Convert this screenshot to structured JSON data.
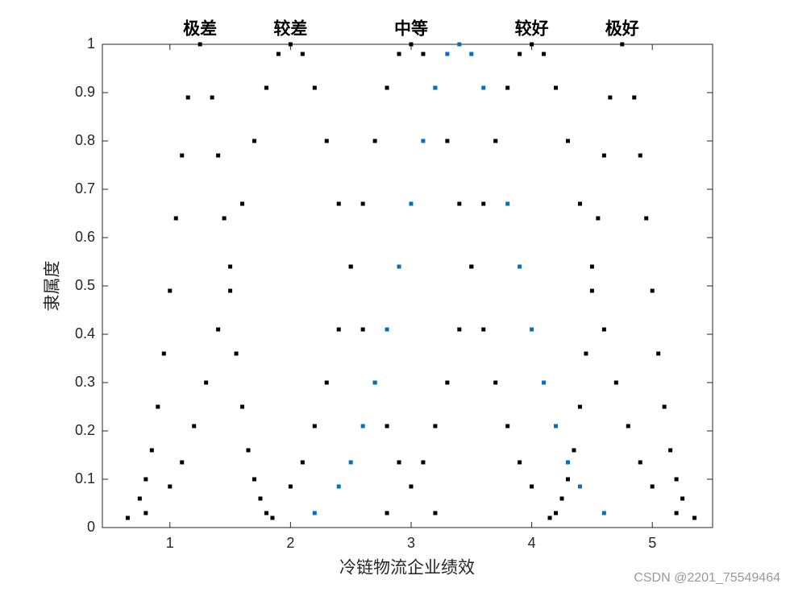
{
  "chart_data": {
    "type": "scatter",
    "x_label": "冷链物流企业绩效",
    "y_label": "隶属度",
    "watermark": "CSDN @2201_75549464",
    "xlim": [
      0.44,
      5.5
    ],
    "xticks": [
      1,
      2,
      3,
      4,
      5
    ],
    "ylim": [
      0,
      1
    ],
    "yticks": [
      0,
      0.1,
      0.2,
      0.3,
      0.4,
      0.5,
      0.6,
      0.7,
      0.8,
      0.9,
      1
    ],
    "series": [
      {
        "name": "极差",
        "color": "#000000",
        "x": [
          0.65,
          0.75,
          0.8,
          0.85,
          0.9,
          0.95,
          1.0,
          1.05,
          1.1,
          1.15,
          1.25,
          1.35,
          1.4,
          1.45,
          1.5,
          1.55,
          1.6,
          1.65,
          1.7,
          1.75,
          1.85
        ],
        "values": [
          0.02,
          0.06,
          0.1,
          0.16,
          0.25,
          0.36,
          0.49,
          0.64,
          0.77,
          0.89,
          1,
          0.89,
          0.77,
          0.64,
          0.49,
          0.36,
          0.25,
          0.16,
          0.1,
          0.06,
          0.02
        ]
      },
      {
        "name": "较差",
        "color": "#000000",
        "x": [
          0.8,
          1.0,
          1.1,
          1.2,
          1.3,
          1.4,
          1.5,
          1.6,
          1.7,
          1.8,
          1.9,
          2.0,
          2.1,
          2.2,
          2.3,
          2.4,
          2.5,
          2.6,
          2.7,
          2.8,
          2.9,
          3.0,
          3.2
        ],
        "values": [
          0.03,
          0.085,
          0.135,
          0.21,
          0.3,
          0.41,
          0.54,
          0.67,
          0.8,
          0.91,
          0.98,
          1,
          0.98,
          0.91,
          0.8,
          0.67,
          0.54,
          0.41,
          0.3,
          0.21,
          0.135,
          0.085,
          0.03
        ]
      },
      {
        "name": "中等",
        "color": "#000000",
        "x": [
          1.8,
          2.0,
          2.1,
          2.2,
          2.3,
          2.4,
          2.5,
          2.6,
          2.7,
          2.8,
          2.9,
          3.0,
          3.1,
          3.2,
          3.3,
          3.4,
          3.5,
          3.6,
          3.7,
          3.8,
          3.9,
          4.0,
          4.2
        ],
        "values": [
          0.03,
          0.085,
          0.135,
          0.21,
          0.3,
          0.41,
          0.54,
          0.67,
          0.8,
          0.91,
          0.98,
          1,
          0.98,
          0.91,
          0.8,
          0.67,
          0.54,
          0.41,
          0.3,
          0.21,
          0.135,
          0.085,
          0.03
        ]
      },
      {
        "color": "#0072bd",
        "x": [
          2.2,
          2.4,
          2.5,
          2.6,
          2.7,
          2.8,
          2.9,
          3.0,
          3.1,
          3.2,
          3.3,
          3.4,
          3.5,
          3.6,
          3.7,
          3.8,
          3.9,
          4.0,
          4.1,
          4.2,
          4.3,
          4.4,
          4.6
        ],
        "values": [
          0.03,
          0.085,
          0.135,
          0.21,
          0.3,
          0.41,
          0.54,
          0.67,
          0.8,
          0.91,
          0.98,
          1,
          0.98,
          0.91,
          0.8,
          0.67,
          0.54,
          0.41,
          0.3,
          0.21,
          0.135,
          0.085,
          0.03
        ]
      },
      {
        "name": "较好",
        "color": "#000000",
        "x": [
          2.8,
          3.0,
          3.1,
          3.2,
          3.3,
          3.4,
          3.5,
          3.6,
          3.7,
          3.8,
          3.9,
          4.0,
          4.1,
          4.2,
          4.3,
          4.4,
          4.5,
          4.6,
          4.7,
          4.8,
          4.9,
          5.0,
          5.2
        ],
        "values": [
          0.03,
          0.085,
          0.135,
          0.21,
          0.3,
          0.41,
          0.54,
          0.67,
          0.8,
          0.91,
          0.98,
          1,
          0.98,
          0.91,
          0.8,
          0.67,
          0.54,
          0.41,
          0.3,
          0.21,
          0.135,
          0.085,
          0.03
        ]
      },
      {
        "name": "极好",
        "color": "#000000",
        "x": [
          4.15,
          4.25,
          4.3,
          4.35,
          4.4,
          4.45,
          4.5,
          4.55,
          4.6,
          4.65,
          4.75,
          4.85,
          4.9,
          4.95,
          5.0,
          5.05,
          5.1,
          5.15,
          5.2,
          5.25,
          5.35
        ],
        "values": [
          0.02,
          0.06,
          0.1,
          0.16,
          0.25,
          0.36,
          0.49,
          0.64,
          0.77,
          0.89,
          1,
          0.89,
          0.77,
          0.64,
          0.49,
          0.36,
          0.25,
          0.16,
          0.1,
          0.06,
          0.02
        ]
      }
    ]
  }
}
